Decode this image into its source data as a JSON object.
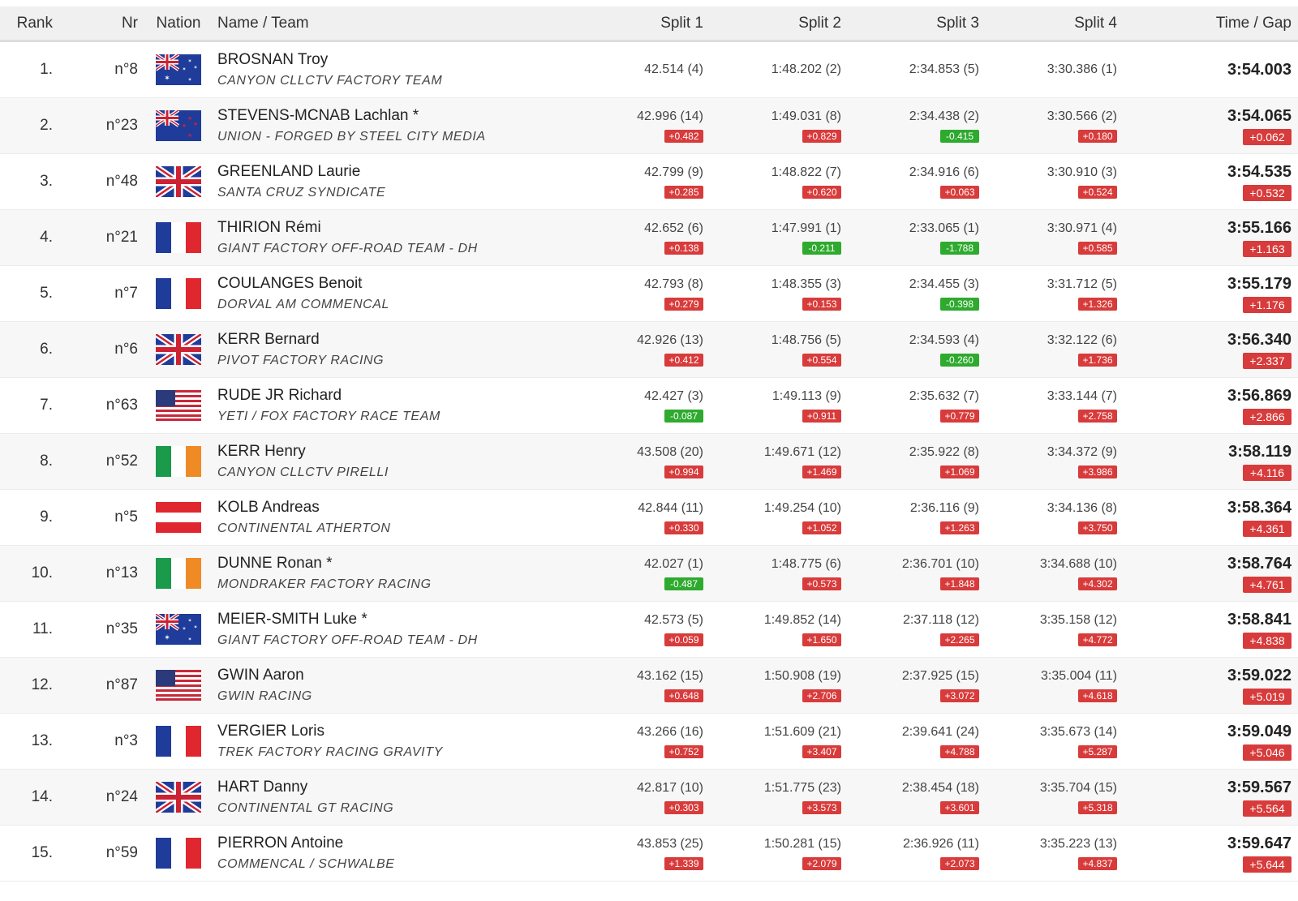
{
  "headers": {
    "rank": "Rank",
    "nr": "Nr",
    "nation": "Nation",
    "name": "Name / Team",
    "s1": "Split 1",
    "s2": "Split 2",
    "s3": "Split 3",
    "s4": "Split 4",
    "time": "Time / Gap"
  },
  "rows": [
    {
      "rank": "1.",
      "nr": "n°8",
      "flag": "AUS",
      "name": "BROSNAN Troy",
      "team": "CANYON CLLCTV FACTORY TEAM",
      "s1": "42.514 (4)",
      "g1": "",
      "s2": "1:48.202 (2)",
      "g2": "",
      "s3": "2:34.853 (5)",
      "g3": "",
      "s4": "3:30.386 (1)",
      "g4": "",
      "time": "3:54.003",
      "gap": ""
    },
    {
      "rank": "2.",
      "nr": "n°23",
      "flag": "NZL",
      "name": "STEVENS-MCNAB Lachlan *",
      "team": "UNION - FORGED BY STEEL CITY MEDIA",
      "s1": "42.996 (14)",
      "g1": "+0.482",
      "s2": "1:49.031 (8)",
      "g2": "+0.829",
      "s3": "2:34.438 (2)",
      "g3": "-0.415",
      "s4": "3:30.566 (2)",
      "g4": "+0.180",
      "time": "3:54.065",
      "gap": "+0.062"
    },
    {
      "rank": "3.",
      "nr": "n°48",
      "flag": "GBR",
      "name": "GREENLAND Laurie",
      "team": "SANTA CRUZ SYNDICATE",
      "s1": "42.799 (9)",
      "g1": "+0.285",
      "s2": "1:48.822 (7)",
      "g2": "+0.620",
      "s3": "2:34.916 (6)",
      "g3": "+0.063",
      "s4": "3:30.910 (3)",
      "g4": "+0.524",
      "time": "3:54.535",
      "gap": "+0.532"
    },
    {
      "rank": "4.",
      "nr": "n°21",
      "flag": "FRA",
      "name": "THIRION Rémi",
      "team": "GIANT FACTORY OFF-ROAD TEAM - DH",
      "s1": "42.652 (6)",
      "g1": "+0.138",
      "s2": "1:47.991 (1)",
      "g2": "-0.211",
      "s3": "2:33.065 (1)",
      "g3": "-1.788",
      "s4": "3:30.971 (4)",
      "g4": "+0.585",
      "time": "3:55.166",
      "gap": "+1.163"
    },
    {
      "rank": "5.",
      "nr": "n°7",
      "flag": "FRA",
      "name": "COULANGES Benoit",
      "team": "DORVAL AM COMMENCAL",
      "s1": "42.793 (8)",
      "g1": "+0.279",
      "s2": "1:48.355 (3)",
      "g2": "+0.153",
      "s3": "2:34.455 (3)",
      "g3": "-0.398",
      "s4": "3:31.712 (5)",
      "g4": "+1.326",
      "time": "3:55.179",
      "gap": "+1.176"
    },
    {
      "rank": "6.",
      "nr": "n°6",
      "flag": "GBR",
      "name": "KERR Bernard",
      "team": "PIVOT FACTORY RACING",
      "s1": "42.926 (13)",
      "g1": "+0.412",
      "s2": "1:48.756 (5)",
      "g2": "+0.554",
      "s3": "2:34.593 (4)",
      "g3": "-0.260",
      "s4": "3:32.122 (6)",
      "g4": "+1.736",
      "time": "3:56.340",
      "gap": "+2.337"
    },
    {
      "rank": "7.",
      "nr": "n°63",
      "flag": "USA",
      "name": "RUDE JR Richard",
      "team": "YETI / FOX FACTORY RACE TEAM",
      "s1": "42.427 (3)",
      "g1": "-0.087",
      "s2": "1:49.113 (9)",
      "g2": "+0.911",
      "s3": "2:35.632 (7)",
      "g3": "+0.779",
      "s4": "3:33.144 (7)",
      "g4": "+2.758",
      "time": "3:56.869",
      "gap": "+2.866"
    },
    {
      "rank": "8.",
      "nr": "n°52",
      "flag": "IRL",
      "name": "KERR Henry",
      "team": "CANYON CLLCTV PIRELLI",
      "s1": "43.508 (20)",
      "g1": "+0.994",
      "s2": "1:49.671 (12)",
      "g2": "+1.469",
      "s3": "2:35.922 (8)",
      "g3": "+1.069",
      "s4": "3:34.372 (9)",
      "g4": "+3.986",
      "time": "3:58.119",
      "gap": "+4.116"
    },
    {
      "rank": "9.",
      "nr": "n°5",
      "flag": "AUT",
      "name": "KOLB Andreas",
      "team": "CONTINENTAL ATHERTON",
      "s1": "42.844 (11)",
      "g1": "+0.330",
      "s2": "1:49.254 (10)",
      "g2": "+1.052",
      "s3": "2:36.116 (9)",
      "g3": "+1.263",
      "s4": "3:34.136 (8)",
      "g4": "+3.750",
      "time": "3:58.364",
      "gap": "+4.361"
    },
    {
      "rank": "10.",
      "nr": "n°13",
      "flag": "IRL",
      "name": "DUNNE Ronan *",
      "team": "MONDRAKER FACTORY RACING",
      "s1": "42.027 (1)",
      "g1": "-0.487",
      "s2": "1:48.775 (6)",
      "g2": "+0.573",
      "s3": "2:36.701 (10)",
      "g3": "+1.848",
      "s4": "3:34.688 (10)",
      "g4": "+4.302",
      "time": "3:58.764",
      "gap": "+4.761"
    },
    {
      "rank": "11.",
      "nr": "n°35",
      "flag": "AUS",
      "name": "MEIER-SMITH Luke *",
      "team": "GIANT FACTORY OFF-ROAD TEAM - DH",
      "s1": "42.573 (5)",
      "g1": "+0.059",
      "s2": "1:49.852 (14)",
      "g2": "+1.650",
      "s3": "2:37.118 (12)",
      "g3": "+2.265",
      "s4": "3:35.158 (12)",
      "g4": "+4.772",
      "time": "3:58.841",
      "gap": "+4.838"
    },
    {
      "rank": "12.",
      "nr": "n°87",
      "flag": "USA",
      "name": "GWIN Aaron",
      "team": "GWIN RACING",
      "s1": "43.162 (15)",
      "g1": "+0.648",
      "s2": "1:50.908 (19)",
      "g2": "+2.706",
      "s3": "2:37.925 (15)",
      "g3": "+3.072",
      "s4": "3:35.004 (11)",
      "g4": "+4.618",
      "time": "3:59.022",
      "gap": "+5.019"
    },
    {
      "rank": "13.",
      "nr": "n°3",
      "flag": "FRA",
      "name": "VERGIER Loris",
      "team": "TREK FACTORY RACING GRAVITY",
      "s1": "43.266 (16)",
      "g1": "+0.752",
      "s2": "1:51.609 (21)",
      "g2": "+3.407",
      "s3": "2:39.641 (24)",
      "g3": "+4.788",
      "s4": "3:35.673 (14)",
      "g4": "+5.287",
      "time": "3:59.049",
      "gap": "+5.046"
    },
    {
      "rank": "14.",
      "nr": "n°24",
      "flag": "GBR",
      "name": "HART Danny",
      "team": "CONTINENTAL GT RACING",
      "s1": "42.817 (10)",
      "g1": "+0.303",
      "s2": "1:51.775 (23)",
      "g2": "+3.573",
      "s3": "2:38.454 (18)",
      "g3": "+3.601",
      "s4": "3:35.704 (15)",
      "g4": "+5.318",
      "time": "3:59.567",
      "gap": "+5.564"
    },
    {
      "rank": "15.",
      "nr": "n°59",
      "flag": "FRA",
      "name": "PIERRON Antoine",
      "team": "COMMENCAL / SCHWALBE",
      "s1": "43.853 (25)",
      "g1": "+1.339",
      "s2": "1:50.281 (15)",
      "g2": "+2.079",
      "s3": "2:36.926 (11)",
      "g3": "+2.073",
      "s4": "3:35.223 (13)",
      "g4": "+4.837",
      "time": "3:59.647",
      "gap": "+5.644"
    }
  ],
  "colors": {
    "gap_positive": "#d83b3b",
    "gap_negative": "#2eaa2e",
    "row_alt": "#f7f7f7",
    "header_bg": "#f0f0f0"
  }
}
